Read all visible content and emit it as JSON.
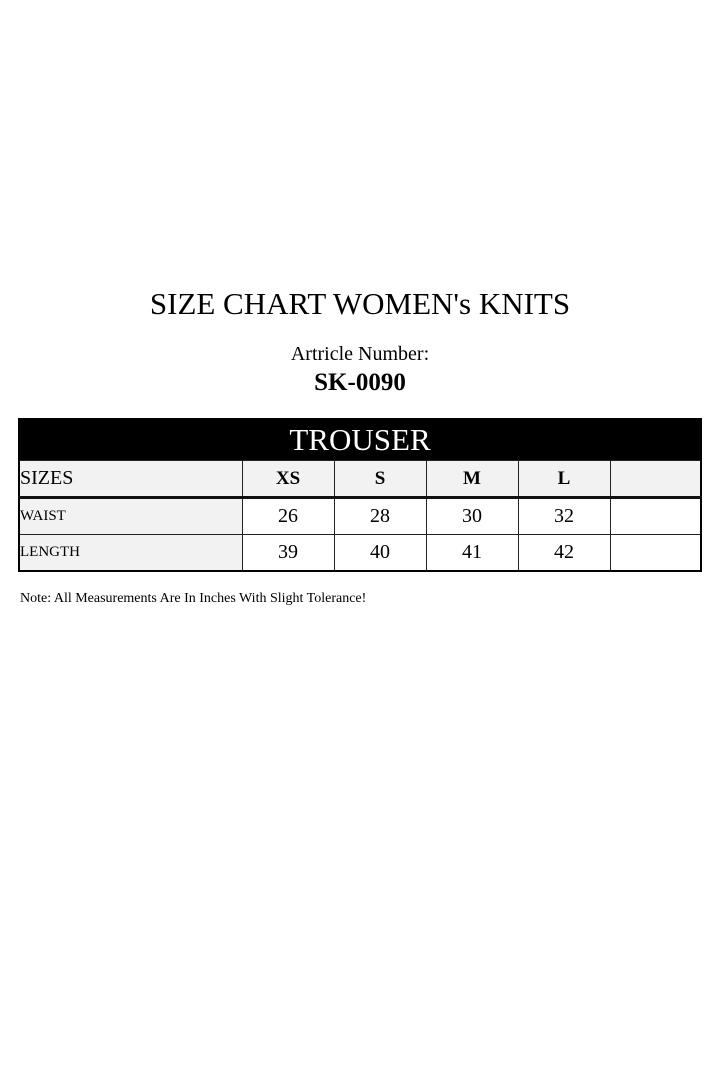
{
  "title": "SIZE CHART WOMEN's KNITS",
  "article_label": "Artricle Number:",
  "article_number": "SK-0090",
  "table": {
    "header": "TROUSER",
    "sizes_label": "SIZES",
    "sizes": [
      "XS",
      "S",
      "M",
      "L",
      ""
    ],
    "rows": [
      {
        "label": "WAIST",
        "values": [
          "26",
          "28",
          "30",
          "32",
          ""
        ]
      },
      {
        "label": "LENGTH",
        "values": [
          "39",
          "40",
          "41",
          "42",
          ""
        ]
      }
    ]
  },
  "note": "Note: All Measurements Are In Inches With Slight Tolerance!"
}
